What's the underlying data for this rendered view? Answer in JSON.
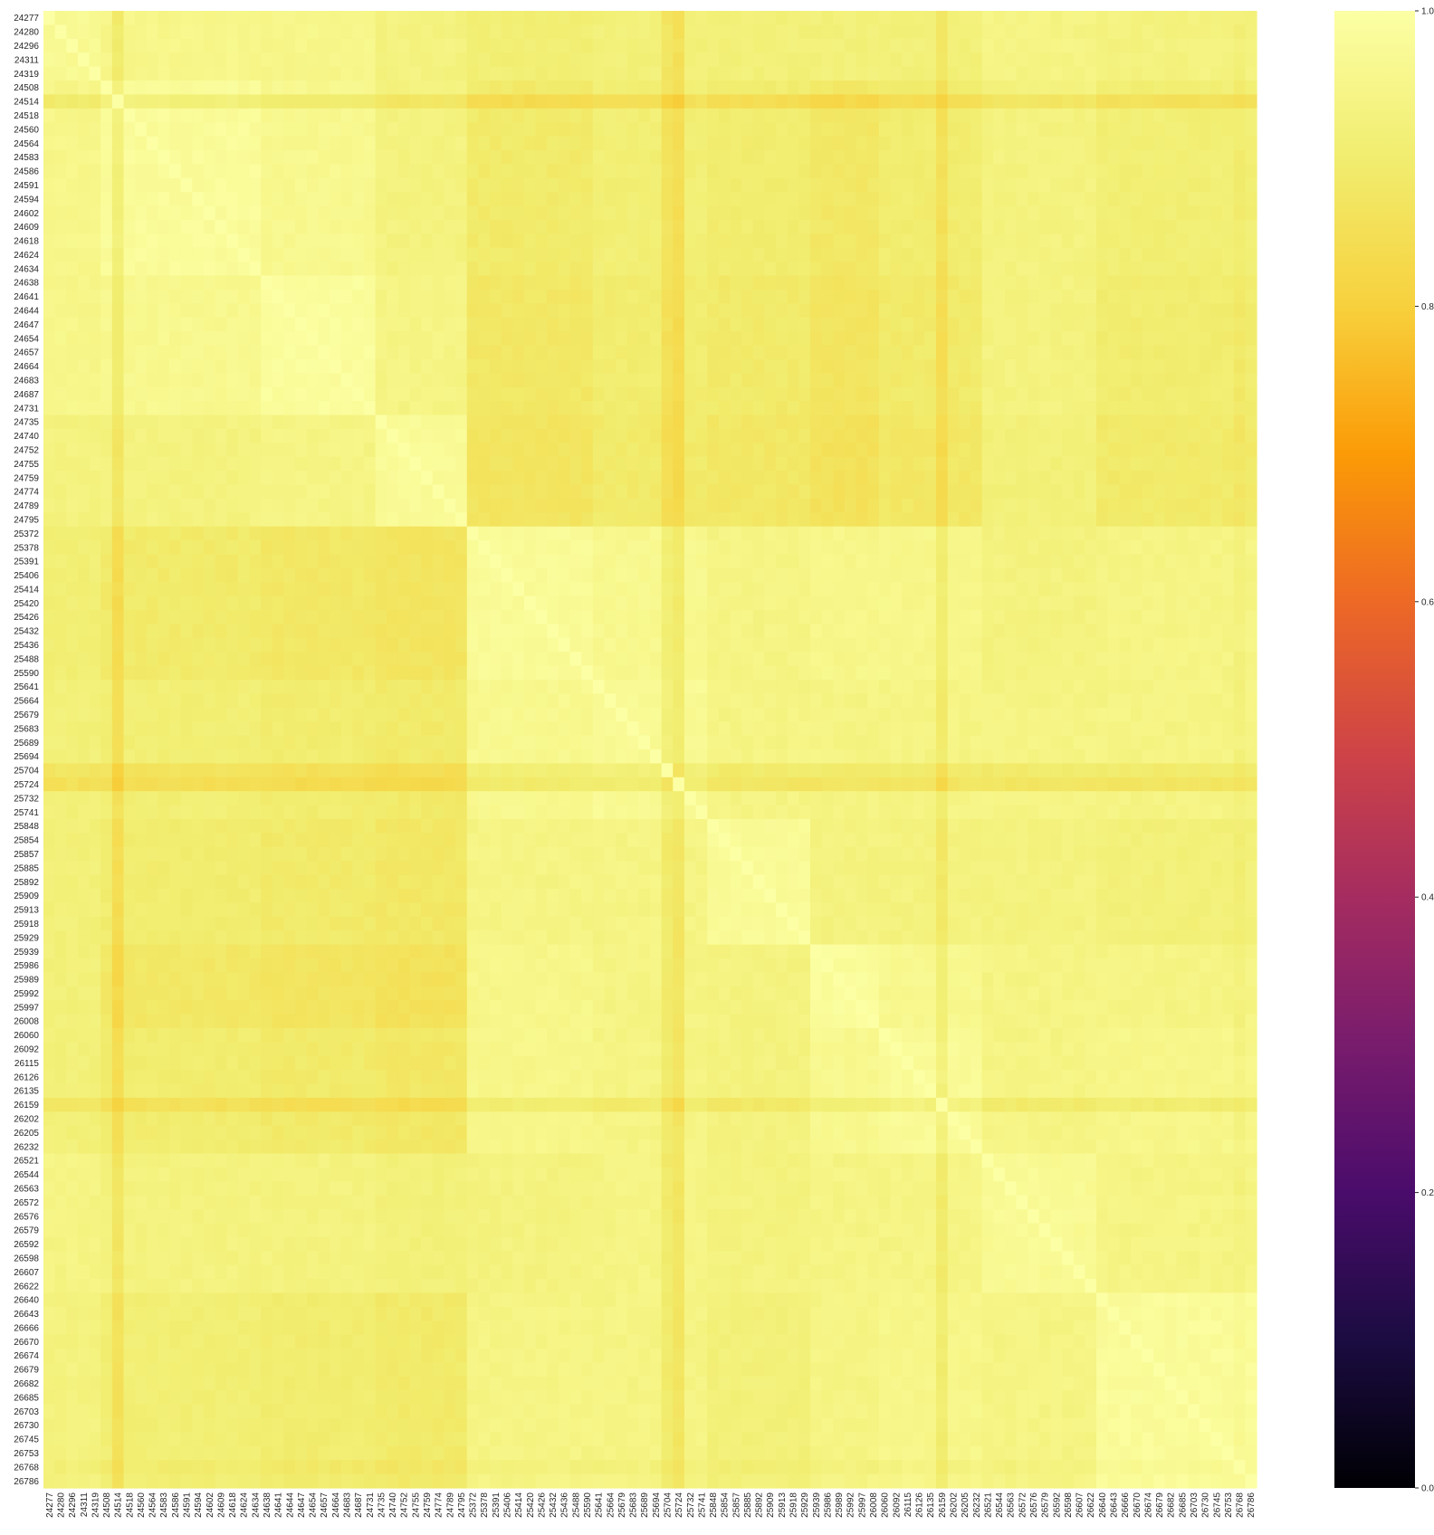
{
  "chart_data": {
    "type": "heatmap",
    "title": "",
    "xlabel": "",
    "ylabel": "",
    "colormap": "inferno",
    "value_range": [
      0.0,
      1.0
    ],
    "colorbar": {
      "ticks": [
        0.0,
        0.2,
        0.4,
        0.6,
        0.8,
        1.0
      ],
      "tick_labels": [
        "0.0",
        "0.2",
        "0.4",
        "0.6",
        "0.8",
        "1.0"
      ]
    },
    "labels": [
      "24277",
      "24280",
      "24296",
      "24311",
      "24319",
      "24508",
      "24514",
      "24518",
      "24560",
      "24564",
      "24583",
      "24586",
      "24591",
      "24594",
      "24602",
      "24609",
      "24618",
      "24624",
      "24634",
      "24638",
      "24641",
      "24644",
      "24647",
      "24654",
      "24657",
      "24664",
      "24683",
      "24687",
      "24731",
      "24735",
      "24740",
      "24752",
      "24755",
      "24759",
      "24774",
      "24789",
      "24795",
      "25372",
      "25378",
      "25391",
      "25406",
      "25414",
      "25420",
      "25426",
      "25432",
      "25436",
      "25488",
      "25590",
      "25641",
      "25664",
      "25679",
      "25683",
      "25689",
      "25694",
      "25704",
      "25724",
      "25732",
      "25741",
      "25848",
      "25854",
      "25857",
      "25885",
      "25892",
      "25909",
      "25913",
      "25918",
      "25929",
      "25939",
      "25986",
      "25989",
      "25992",
      "25997",
      "26008",
      "26060",
      "26092",
      "26115",
      "26126",
      "26135",
      "26159",
      "26202",
      "26205",
      "26232",
      "26521",
      "26544",
      "26563",
      "26572",
      "26576",
      "26579",
      "26592",
      "26598",
      "26607",
      "26622",
      "26640",
      "26643",
      "26666",
      "26670",
      "26674",
      "26679",
      "26682",
      "26685",
      "26703",
      "26730",
      "26745",
      "26753",
      "26768",
      "26786"
    ],
    "clusters": [
      {
        "from": 0,
        "to": 4,
        "within": 0.97
      },
      {
        "from": 5,
        "to": 18,
        "within": 0.98
      },
      {
        "from": 19,
        "to": 28,
        "within": 0.985
      },
      {
        "from": 29,
        "to": 36,
        "within": 0.975
      },
      {
        "from": 37,
        "to": 47,
        "within": 0.975
      },
      {
        "from": 48,
        "to": 57,
        "within": 0.97
      },
      {
        "from": 58,
        "to": 66,
        "within": 0.975
      },
      {
        "from": 67,
        "to": 72,
        "within": 0.985
      },
      {
        "from": 73,
        "to": 81,
        "within": 0.975
      },
      {
        "from": 82,
        "to": 91,
        "within": 0.97
      },
      {
        "from": 92,
        "to": 105,
        "within": 0.98
      }
    ],
    "between_cluster_mean": [
      [
        0.97,
        0.95,
        0.95,
        0.93,
        0.91,
        0.92,
        0.92,
        0.92,
        0.92,
        0.94,
        0.93
      ],
      [
        0.95,
        0.98,
        0.96,
        0.93,
        0.89,
        0.91,
        0.9,
        0.88,
        0.9,
        0.93,
        0.91
      ],
      [
        0.95,
        0.96,
        0.985,
        0.94,
        0.88,
        0.9,
        0.89,
        0.87,
        0.89,
        0.93,
        0.9
      ],
      [
        0.93,
        0.93,
        0.94,
        0.975,
        0.87,
        0.89,
        0.88,
        0.86,
        0.88,
        0.92,
        0.89
      ],
      [
        0.91,
        0.89,
        0.88,
        0.87,
        0.975,
        0.96,
        0.94,
        0.95,
        0.95,
        0.93,
        0.94
      ],
      [
        0.92,
        0.91,
        0.9,
        0.89,
        0.96,
        0.97,
        0.94,
        0.94,
        0.94,
        0.94,
        0.94
      ],
      [
        0.92,
        0.9,
        0.89,
        0.88,
        0.94,
        0.94,
        0.975,
        0.93,
        0.93,
        0.93,
        0.92
      ],
      [
        0.92,
        0.88,
        0.87,
        0.86,
        0.95,
        0.94,
        0.93,
        0.985,
        0.96,
        0.94,
        0.94
      ],
      [
        0.92,
        0.9,
        0.89,
        0.88,
        0.95,
        0.94,
        0.93,
        0.96,
        0.975,
        0.94,
        0.95
      ],
      [
        0.94,
        0.93,
        0.93,
        0.92,
        0.93,
        0.94,
        0.93,
        0.94,
        0.94,
        0.97,
        0.94
      ],
      [
        0.93,
        0.91,
        0.9,
        0.89,
        0.94,
        0.94,
        0.92,
        0.94,
        0.95,
        0.94,
        0.98
      ]
    ],
    "low_similarity_rows": [
      {
        "index": 6,
        "factor": 0.94
      },
      {
        "index": 54,
        "factor": 0.95
      },
      {
        "index": 55,
        "factor": 0.93
      },
      {
        "index": 78,
        "factor": 0.95
      },
      {
        "index": 104,
        "factor": 0.985
      }
    ]
  }
}
